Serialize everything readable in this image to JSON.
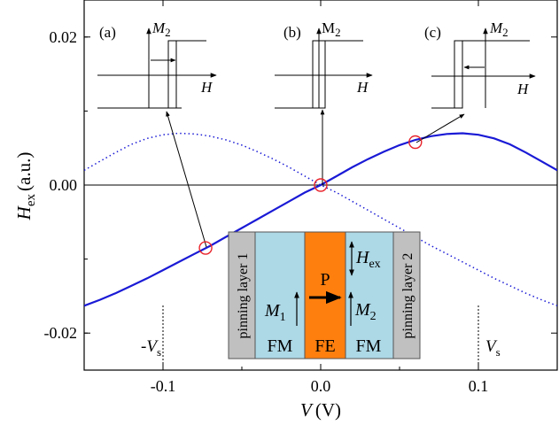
{
  "chart_data": {
    "type": "line",
    "xlabel": "V",
    "xlabel_unit": "(V)",
    "ylabel": "H",
    "ylabel_sub": "ex",
    "ylabel_unit": "(a.u.)",
    "xlim": [
      -0.15,
      0.15
    ],
    "ylim": [
      -0.025,
      0.025
    ],
    "xticks": [
      -0.1,
      0.0,
      0.1
    ],
    "xtick_labels": [
      "-0.1",
      "0.0",
      "0.1"
    ],
    "yticks": [
      -0.02,
      0.0,
      0.02
    ],
    "ytick_labels": [
      "-0.02",
      "0.00",
      "0.02"
    ],
    "series": [
      {
        "style": "solid",
        "color": "#1a1ad6",
        "x": [
          -0.15,
          -0.14,
          -0.13,
          -0.12,
          -0.11,
          -0.1,
          -0.09,
          -0.08,
          -0.07,
          -0.06,
          -0.05,
          -0.04,
          -0.03,
          -0.02,
          -0.01,
          0.0,
          0.01,
          0.02,
          0.03,
          0.04,
          0.05,
          0.06,
          0.07,
          0.08,
          0.09,
          0.1,
          0.11,
          0.12,
          0.13,
          0.14,
          0.15
        ],
        "y": [
          -0.0163,
          -0.0155,
          -0.0146,
          -0.0136,
          -0.0126,
          -0.0115,
          -0.0104,
          -0.0093,
          -0.0082,
          -0.007,
          -0.0058,
          -0.0046,
          -0.0034,
          -0.0022,
          -0.001,
          0.0,
          0.0012,
          0.0024,
          0.0035,
          0.0045,
          0.0054,
          0.0061,
          0.0066,
          0.0069,
          0.007,
          0.0068,
          0.0063,
          0.0055,
          0.0044,
          0.0032,
          0.002
        ]
      },
      {
        "style": "dotted",
        "color": "#1a1ad6",
        "x": [
          -0.15,
          -0.14,
          -0.13,
          -0.12,
          -0.11,
          -0.1,
          -0.09,
          -0.08,
          -0.07,
          -0.06,
          -0.05,
          -0.04,
          -0.03,
          -0.02,
          -0.01,
          0.0,
          0.01,
          0.02,
          0.03,
          0.04,
          0.05,
          0.06,
          0.07,
          0.08,
          0.09,
          0.1,
          0.11,
          0.12,
          0.13,
          0.14,
          0.15
        ],
        "y": [
          0.002,
          0.0032,
          0.0044,
          0.0055,
          0.0063,
          0.0068,
          0.007,
          0.0069,
          0.0066,
          0.0061,
          0.0054,
          0.0045,
          0.0035,
          0.0024,
          0.0012,
          0.0,
          -0.001,
          -0.0022,
          -0.0034,
          -0.0046,
          -0.0058,
          -0.007,
          -0.0082,
          -0.0093,
          -0.0104,
          -0.0115,
          -0.0126,
          -0.0136,
          -0.0146,
          -0.0155,
          -0.0163
        ]
      }
    ],
    "markers": [
      {
        "label": "(a)",
        "x": -0.073,
        "y": -0.0085
      },
      {
        "label": "(b)",
        "x": 0.0,
        "y": 0.0
      },
      {
        "label": "(c)",
        "x": 0.06,
        "y": 0.0058
      }
    ],
    "vs_lines": [
      {
        "label": "-V",
        "sub": "s",
        "x": -0.1
      },
      {
        "label": "V",
        "sub": "s",
        "x": 0.1
      }
    ],
    "insets": [
      {
        "panel": "(a)",
        "ylabel": "M",
        "ylabel_sub": "2",
        "xlabel": "H",
        "arrow": "right"
      },
      {
        "panel": "(b)",
        "ylabel": "M",
        "ylabel_sub": "2",
        "xlabel": "H",
        "arrow": "none"
      },
      {
        "panel": "(c)",
        "ylabel": "M",
        "ylabel_sub": "2",
        "xlabel": "H",
        "arrow": "left"
      }
    ],
    "device": {
      "layers": [
        {
          "label": "pinning layer 1",
          "color": "#c0c0c0"
        },
        {
          "label": "FM",
          "color": "#add8e6"
        },
        {
          "label": "FE",
          "color": "#ff7f0e"
        },
        {
          "label": "FM",
          "color": "#add8e6"
        },
        {
          "label": "pinning layer 2",
          "color": "#c0c0c0"
        }
      ],
      "m1_label": "M",
      "m1_sub": "1",
      "m2_label": "M",
      "m2_sub": "2",
      "p_label": "P",
      "hex_label": "H",
      "hex_sub": "ex"
    }
  }
}
